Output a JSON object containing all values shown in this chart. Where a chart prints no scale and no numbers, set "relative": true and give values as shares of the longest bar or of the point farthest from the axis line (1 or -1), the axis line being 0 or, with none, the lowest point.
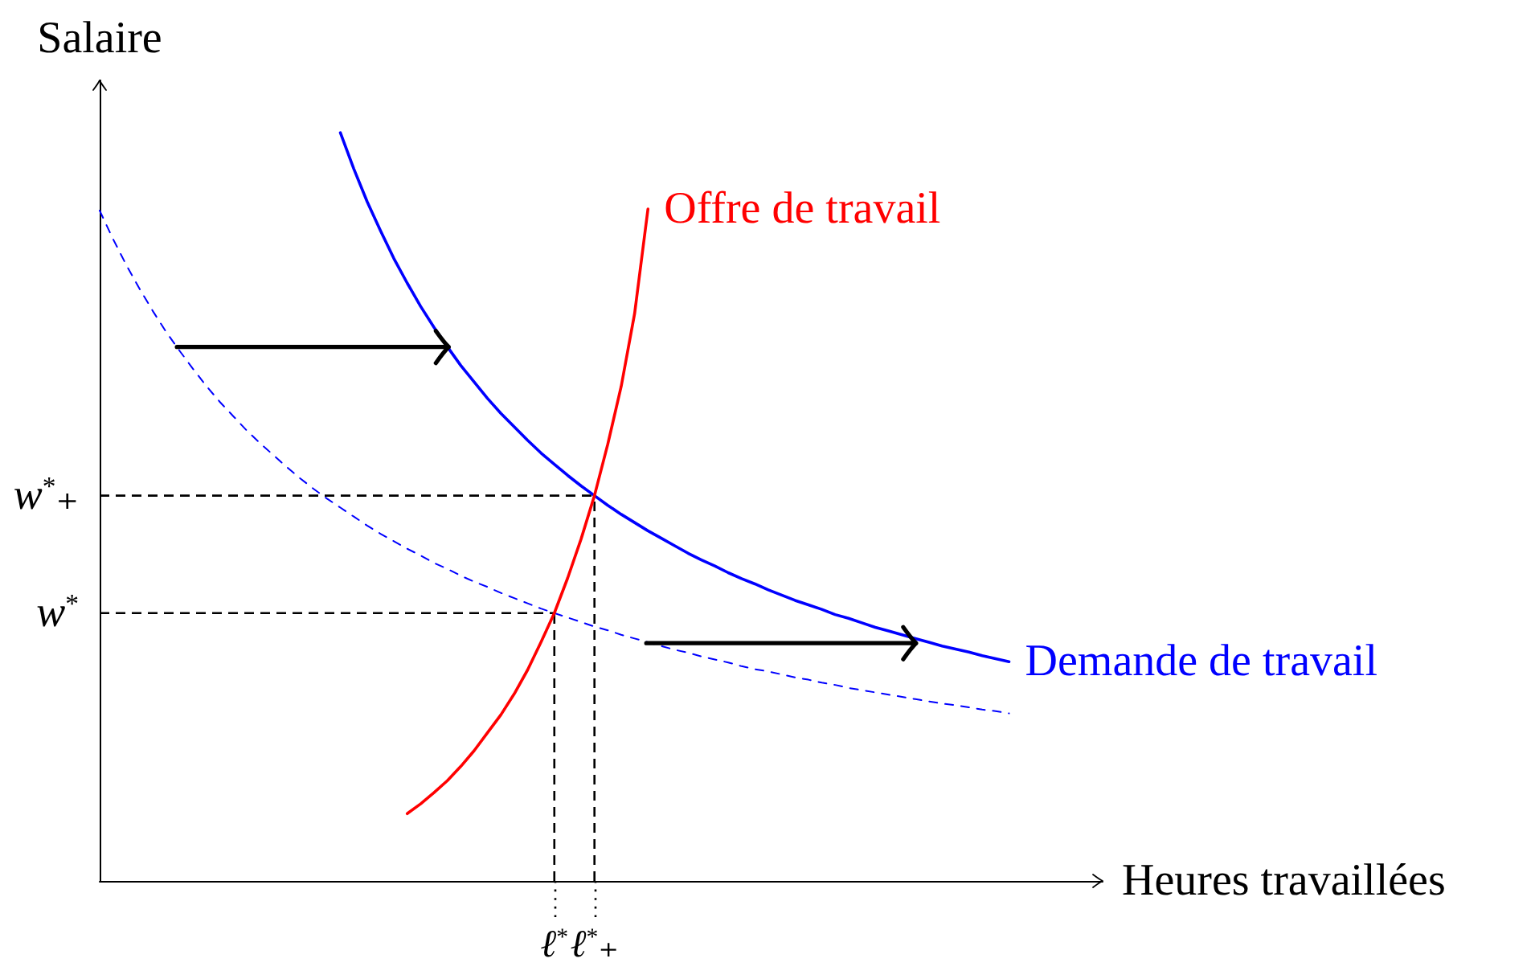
{
  "chart_data": {
    "type": "line",
    "relative": true,
    "ylabel": "Salaire",
    "xlabel": "Heures travaillées",
    "categories": [
      null,
      null,
      null,
      null,
      null,
      null,
      null,
      null,
      null,
      null,
      null,
      null,
      null,
      null,
      null,
      null,
      null,
      null,
      null,
      null,
      null,
      null,
      null,
      null,
      null,
      null,
      null,
      null,
      null,
      null,
      null,
      null,
      null,
      null,
      "ℓ$^{*}$",
      null,
      null,
      "ℓ$^{*}$₊",
      null,
      null,
      null,
      null,
      null,
      null,
      null,
      null,
      null,
      null,
      null,
      null,
      null,
      null,
      null,
      null,
      null,
      null,
      null,
      null,
      null,
      null,
      null,
      null,
      null,
      null,
      null,
      null,
      null,
      null,
      null,
      null,
      null,
      null,
      null,
      null,
      null,
      null
    ],
    "marker": "none",
    "line_style": "solid",
    "series": [
      {
        "name": "Demande de travail",
        "color": "#0000ff",
        "values": [
          null,
          null,
          null,
          null,
          null,
          null,
          null,
          null,
          null,
          null,
          null,
          null,
          null,
          null,
          null,
          null,
          null,
          null,
          1,
          0.952,
          0.908,
          0.869,
          0.832,
          0.799,
          0.768,
          0.74,
          0.714,
          0.689,
          0.667,
          0.645,
          0.625,
          0.607,
          0.589,
          0.572,
          0.557,
          0.542,
          0.528,
          0.515,
          0.502,
          0.49,
          0.479,
          0.468,
          0.458,
          0.448,
          0.438,
          0.429,
          0.421,
          0.412,
          0.404,
          0.397,
          0.389,
          0.382,
          0.375,
          0.369,
          0.363,
          0.356,
          0.351,
          0.345,
          0.339,
          0.334,
          0.329,
          0.324,
          0.319,
          0.314,
          0.31,
          0.306,
          0.301,
          0.297,
          0.293,
          null,
          null,
          null,
          null,
          null,
          null,
          null
        ]
      },
      {
        "color": "#0000ff",
        "line_style": "dashed",
        "values": [
          0.896,
          0.858,
          0.823,
          0.791,
          0.761,
          0.733,
          0.708,
          0.684,
          0.661,
          0.64,
          0.621,
          0.602,
          0.585,
          0.569,
          0.553,
          0.538,
          0.524,
          0.511,
          0.499,
          0.487,
          0.475,
          0.464,
          0.454,
          0.444,
          0.435,
          0.425,
          0.417,
          0.408,
          0.4,
          0.393,
          0.385,
          0.378,
          0.371,
          0.364,
          0.358,
          0.352,
          0.346,
          0.34,
          0.335,
          0.329,
          0.324,
          0.319,
          0.314,
          0.309,
          0.305,
          0.3,
          0.296,
          0.292,
          0.287,
          0.283,
          0.28,
          0.276,
          0.272,
          0.269,
          0.265,
          0.262,
          0.258,
          0.255,
          0.252,
          0.249,
          0.246,
          0.243,
          0.24,
          0.237,
          0.235,
          0.232,
          0.229,
          0.227,
          0.224,
          null,
          null,
          null,
          null,
          null,
          null,
          null
        ]
      },
      {
        "name": "Offre de travail",
        "color": "#ff0000",
        "values": [
          null,
          null,
          null,
          null,
          null,
          null,
          null,
          null,
          null,
          null,
          null,
          null,
          null,
          null,
          null,
          null,
          null,
          null,
          null,
          null,
          null,
          null,
          null,
          0.09,
          0.103,
          0.118,
          0.134,
          0.153,
          0.174,
          0.198,
          0.222,
          0.25,
          0.282,
          0.319,
          0.358,
          0.405,
          0.457,
          0.515,
          0.584,
          0.661,
          0.758,
          0.898,
          null,
          null,
          null,
          null,
          null,
          null,
          null,
          null,
          null,
          null,
          null,
          null,
          null,
          null,
          null,
          null,
          null,
          null,
          null,
          null,
          null,
          null,
          null,
          null,
          null,
          null,
          null,
          null,
          null,
          null,
          null,
          null,
          null,
          null
        ]
      }
    ],
    "ref_lines": [
      {
        "axis": "y",
        "value": 0.358,
        "label": "w$^{*}$",
        "color": "#000000",
        "line_style": "dashed"
      },
      {
        "axis": "x",
        "value": "ℓ$^{*}$",
        "color": "#000000",
        "line_style": "dashed"
      },
      {
        "axis": "y",
        "value": 0.515,
        "label": "w$^{*}$₊",
        "color": "#000000",
        "line_style": "dashed"
      },
      {
        "axis": "x",
        "value": "ℓ$^{*}$₊",
        "color": "#000000",
        "line_style": "dashed"
      }
    ]
  }
}
